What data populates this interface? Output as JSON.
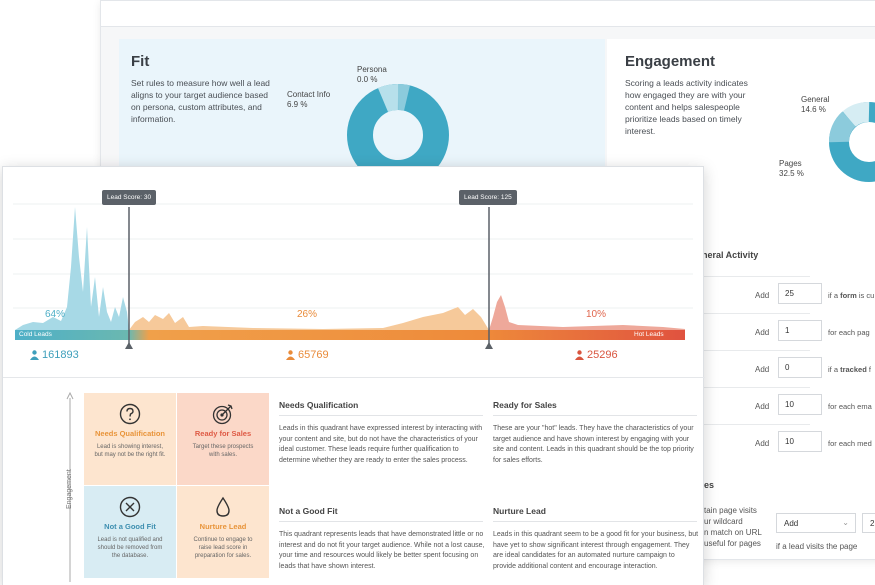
{
  "back": {
    "fit": {
      "title": "Fit",
      "description": "Set rules to measure how well a lead aligns to your target audience based on persona, custom attributes, and information.",
      "labels": [
        {
          "name": "Persona",
          "value": "0.0 %"
        },
        {
          "name": "Contact Info",
          "value": "6.9 %"
        }
      ]
    },
    "engagement": {
      "title": "Engagement",
      "description": "Scoring a leads activity indicates how engaged they are with your content and helps salespeople prioritize leads based on timely interest.",
      "labels": [
        {
          "name": "General",
          "value": "14.6 %"
        },
        {
          "name": "Pages",
          "value": "32.5 %"
        }
      ]
    },
    "general_activity": {
      "heading": "General Activity",
      "rows": [
        {
          "add": "Add",
          "value": "25",
          "prefix": "if a ",
          "bold": "form",
          "suffix": " is cu"
        },
        {
          "add": "Add",
          "value": "1",
          "prefix": "for each pag",
          "bold": "",
          "suffix": ""
        },
        {
          "add": "Add",
          "value": "0",
          "prefix": "if a ",
          "bold": "tracked",
          "suffix": " f"
        },
        {
          "add": "Add",
          "value": "10",
          "prefix": "for each ema",
          "bold": "",
          "suffix": ""
        },
        {
          "add": "Add",
          "value": "10",
          "prefix": "for each med",
          "bold": "",
          "suffix": ""
        }
      ]
    },
    "pages": {
      "heading": "es",
      "desc": "tain page visits\nur wildcard\nn match on URL\nuseful for pages",
      "select": "Add",
      "select2": "2",
      "footer": "if a lead visits the page"
    }
  },
  "chart_data": {
    "type": "area",
    "markers": [
      {
        "label": "Lead Score: 30"
      },
      {
        "label": "Lead Score: 125"
      }
    ],
    "axis_left": "Cold Leads",
    "axis_right": "Hot Leads",
    "segments": [
      {
        "percent": "64%",
        "count": "161893",
        "color": "#4eafc7"
      },
      {
        "percent": "26%",
        "count": "65769",
        "color": "#f0a04a"
      },
      {
        "percent": "10%",
        "count": "25296",
        "color": "#e0664d"
      }
    ]
  },
  "quadrants": {
    "axis_label": "Engagement",
    "cells": [
      {
        "title": "Needs Qualification",
        "desc": "Lead is showing interest, but may not be the right fit.",
        "color": "#e8943a"
      },
      {
        "title": "Ready for Sales",
        "desc": "Target these prospects with sales.",
        "color": "#de5a45"
      },
      {
        "title": "Not a Good Fit",
        "desc": "Lead is not qualified and should be removed from the database.",
        "color": "#3e8fb0"
      },
      {
        "title": "Nurture Lead",
        "desc": "Continue to engage to raise lead score in preparation for sales.",
        "color": "#e8943a"
      }
    ],
    "sections": [
      {
        "title": "Needs Qualification",
        "body": "Leads in this quadrant have expressed interest by interacting with your content and site, but do not have the characteristics of your ideal customer. These leads require further qualification to determine whether they are ready to enter the sales process."
      },
      {
        "title": "Ready for Sales",
        "body": "These are your \"hot\" leads. They have the characteristics of your target audience and have shown interest by engaging with your site and content. Leads in this quadrant should be the top priority for sales efforts."
      },
      {
        "title": "Not a Good Fit",
        "body": "This quadrant represents leads that have demonstrated little or no interest and do not fit your target audience. While not a lost cause, your time and resources would likely be better spent focusing on leads that have shown interest."
      },
      {
        "title": "Nurture Lead",
        "body": "Leads in this quadrant seem to be a good fit for your business, but have yet to show significant interest through engagement. They are ideal candidates for an automated nurture campaign to provide additional content and encourage interaction."
      }
    ]
  }
}
